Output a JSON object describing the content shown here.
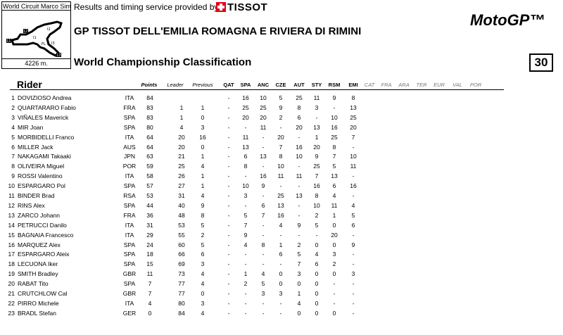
{
  "circuit": {
    "name": "World Circuit Marco Simoncelli",
    "length": "4226 m.",
    "map_labels": [
      "L1",
      "L2",
      "L3",
      "FL",
      "I1",
      "I2",
      "I3"
    ]
  },
  "header": {
    "provided_by": "Results and timing service provided by",
    "sponsor": "TISSOT",
    "event": "GP TISSOT DELL'EMILIA ROMAGNA E RIVIERA DI RIMINI",
    "series": "MotoGP™",
    "session": "World Championship Classification",
    "page_number": "30"
  },
  "columns": {
    "rider": "Rider",
    "points": "Points",
    "leader": "Leader",
    "previous": "Previous",
    "races": [
      "QAT",
      "SPA",
      "ANC",
      "CZE",
      "AUT",
      "STY",
      "RSM",
      "EMI",
      "CAT",
      "FRA",
      "ARA",
      "TER",
      "EUR",
      "VAL",
      "POR"
    ]
  },
  "rows": [
    {
      "pos": "1",
      "name": "DOVIZIOSO Andrea",
      "nat": "ITA",
      "points": "84",
      "leader": "",
      "previous": "",
      "res": [
        "-",
        "16",
        "10",
        "5",
        "25",
        "11",
        "9",
        "8"
      ]
    },
    {
      "pos": "2",
      "name": "QUARTARARO Fabio",
      "nat": "FRA",
      "points": "83",
      "leader": "1",
      "previous": "1",
      "res": [
        "-",
        "25",
        "25",
        "9",
        "8",
        "3",
        "-",
        "13"
      ]
    },
    {
      "pos": "3",
      "name": "VIÑALES Maverick",
      "nat": "SPA",
      "points": "83",
      "leader": "1",
      "previous": "0",
      "res": [
        "-",
        "20",
        "20",
        "2",
        "6",
        "-",
        "10",
        "25"
      ]
    },
    {
      "pos": "4",
      "name": "MIR Joan",
      "nat": "SPA",
      "points": "80",
      "leader": "4",
      "previous": "3",
      "res": [
        "-",
        "-",
        "11",
        "-",
        "20",
        "13",
        "16",
        "20"
      ]
    },
    {
      "pos": "5",
      "name": "MORBIDELLI Franco",
      "nat": "ITA",
      "points": "64",
      "leader": "20",
      "previous": "16",
      "res": [
        "-",
        "11",
        "-",
        "20",
        "-",
        "1",
        "25",
        "7"
      ]
    },
    {
      "pos": "6",
      "name": "MILLER Jack",
      "nat": "AUS",
      "points": "64",
      "leader": "20",
      "previous": "0",
      "res": [
        "-",
        "13",
        "-",
        "7",
        "16",
        "20",
        "8",
        "-"
      ]
    },
    {
      "pos": "7",
      "name": "NAKAGAMI Takaaki",
      "nat": "JPN",
      "points": "63",
      "leader": "21",
      "previous": "1",
      "res": [
        "-",
        "6",
        "13",
        "8",
        "10",
        "9",
        "7",
        "10"
      ]
    },
    {
      "pos": "8",
      "name": "OLIVEIRA Miguel",
      "nat": "POR",
      "points": "59",
      "leader": "25",
      "previous": "4",
      "res": [
        "-",
        "8",
        "-",
        "10",
        "-",
        "25",
        "5",
        "11"
      ]
    },
    {
      "pos": "9",
      "name": "ROSSI Valentino",
      "nat": "ITA",
      "points": "58",
      "leader": "26",
      "previous": "1",
      "res": [
        "-",
        "-",
        "16",
        "11",
        "11",
        "7",
        "13",
        "-"
      ]
    },
    {
      "pos": "10",
      "name": "ESPARGARO Pol",
      "nat": "SPA",
      "points": "57",
      "leader": "27",
      "previous": "1",
      "res": [
        "-",
        "10",
        "9",
        "-",
        "-",
        "16",
        "6",
        "16"
      ]
    },
    {
      "pos": "11",
      "name": "BINDER Brad",
      "nat": "RSA",
      "points": "53",
      "leader": "31",
      "previous": "4",
      "res": [
        "-",
        "3",
        "-",
        "25",
        "13",
        "8",
        "4",
        "-"
      ]
    },
    {
      "pos": "12",
      "name": "RINS Alex",
      "nat": "SPA",
      "points": "44",
      "leader": "40",
      "previous": "9",
      "res": [
        "-",
        "-",
        "6",
        "13",
        "-",
        "10",
        "11",
        "4"
      ]
    },
    {
      "pos": "13",
      "name": "ZARCO Johann",
      "nat": "FRA",
      "points": "36",
      "leader": "48",
      "previous": "8",
      "res": [
        "-",
        "5",
        "7",
        "16",
        "-",
        "2",
        "1",
        "5"
      ]
    },
    {
      "pos": "14",
      "name": "PETRUCCI Danilo",
      "nat": "ITA",
      "points": "31",
      "leader": "53",
      "previous": "5",
      "res": [
        "-",
        "7",
        "-",
        "4",
        "9",
        "5",
        "0",
        "6"
      ]
    },
    {
      "pos": "15",
      "name": "BAGNAIA Francesco",
      "nat": "ITA",
      "points": "29",
      "leader": "55",
      "previous": "2",
      "res": [
        "-",
        "9",
        "-",
        "-",
        "-",
        "-",
        "20",
        "-"
      ]
    },
    {
      "pos": "16",
      "name": "MARQUEZ Alex",
      "nat": "SPA",
      "points": "24",
      "leader": "60",
      "previous": "5",
      "res": [
        "-",
        "4",
        "8",
        "1",
        "2",
        "0",
        "0",
        "9"
      ]
    },
    {
      "pos": "17",
      "name": "ESPARGARO Aleix",
      "nat": "SPA",
      "points": "18",
      "leader": "66",
      "previous": "6",
      "res": [
        "-",
        "-",
        "-",
        "6",
        "5",
        "4",
        "3",
        "-"
      ]
    },
    {
      "pos": "18",
      "name": "LECUONA Iker",
      "nat": "SPA",
      "points": "15",
      "leader": "69",
      "previous": "3",
      "res": [
        "-",
        "-",
        "-",
        "-",
        "7",
        "6",
        "2",
        "-"
      ]
    },
    {
      "pos": "19",
      "name": "SMITH Bradley",
      "nat": "GBR",
      "points": "11",
      "leader": "73",
      "previous": "4",
      "res": [
        "-",
        "1",
        "4",
        "0",
        "3",
        "0",
        "0",
        "3"
      ]
    },
    {
      "pos": "20",
      "name": "RABAT Tito",
      "nat": "SPA",
      "points": "7",
      "leader": "77",
      "previous": "4",
      "res": [
        "-",
        "2",
        "5",
        "0",
        "0",
        "0",
        "-",
        "-"
      ]
    },
    {
      "pos": "21",
      "name": "CRUTCHLOW Cal",
      "nat": "GBR",
      "points": "7",
      "leader": "77",
      "previous": "0",
      "res": [
        "-",
        "-",
        "3",
        "3",
        "1",
        "0",
        "-",
        "-"
      ]
    },
    {
      "pos": "22",
      "name": "PIRRO Michele",
      "nat": "ITA",
      "points": "4",
      "leader": "80",
      "previous": "3",
      "res": [
        "-",
        "-",
        "-",
        "-",
        "4",
        "0",
        "-",
        "-"
      ]
    },
    {
      "pos": "23",
      "name": "BRADL Stefan",
      "nat": "GER",
      "points": "0",
      "leader": "84",
      "previous": "4",
      "res": [
        "-",
        "-",
        "-",
        "-",
        "0",
        "0",
        "0",
        "-"
      ]
    }
  ]
}
